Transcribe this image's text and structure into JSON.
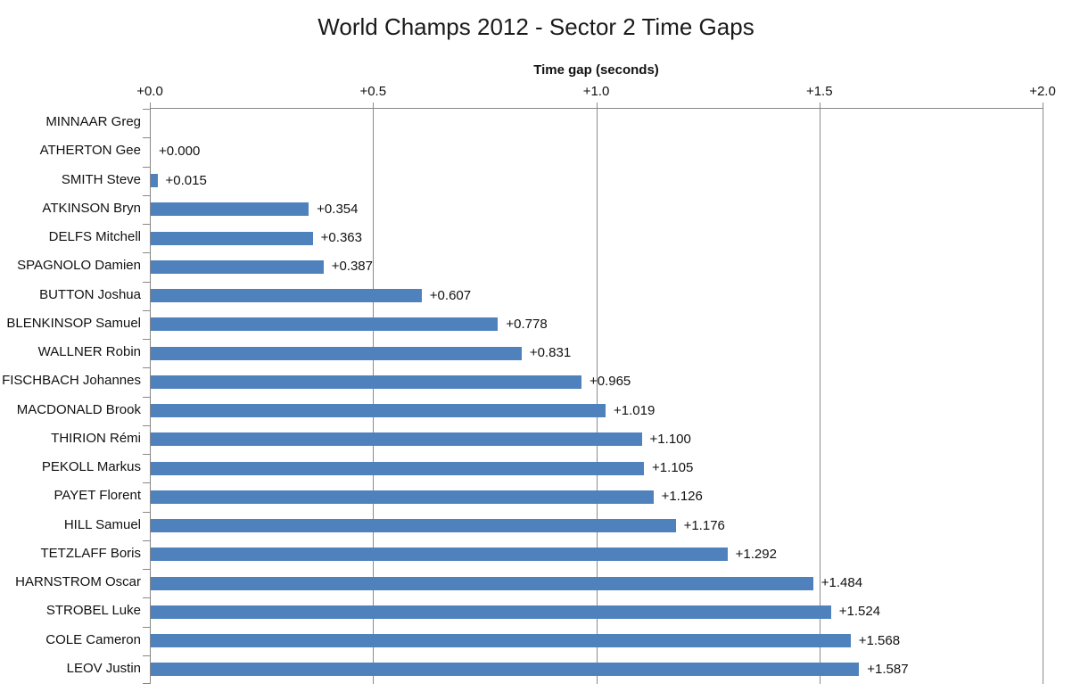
{
  "title": "World Champs 2012 - Sector 2 Time Gaps",
  "axis": {
    "title": "Time gap (seconds)",
    "ticks": [
      "+0.0",
      "+0.5",
      "+1.0",
      "+1.5",
      "+2.0"
    ]
  },
  "colors": {
    "bar": "#4f81bd",
    "gridline": "#8a8a8a",
    "text": "#111111"
  },
  "chart_data": {
    "type": "bar",
    "orientation": "horizontal",
    "title": "World Champs 2012 - Sector 2 Time Gaps",
    "xlabel": "Time gap (seconds)",
    "xlim": [
      0,
      2
    ],
    "grid": true,
    "categories": [
      "MINNAAR Greg",
      "ATHERTON Gee",
      "SMITH Steve",
      "ATKINSON Bryn",
      "DELFS Mitchell",
      "SPAGNOLO Damien",
      "BUTTON Joshua",
      "BLENKINSOP Samuel",
      "WALLNER Robin",
      "FISCHBACH Johannes",
      "MACDONALD Brook",
      "THIRION Rémi",
      "PEKOLL Markus",
      "PAYET Florent",
      "HILL Samuel",
      "TETZLAFF Boris",
      "HARNSTROM Oscar",
      "STROBEL Luke",
      "COLE Cameron",
      "LEOV Justin"
    ],
    "values": [
      null,
      0.0,
      0.015,
      0.354,
      0.363,
      0.387,
      0.607,
      0.778,
      0.831,
      0.965,
      1.019,
      1.1,
      1.105,
      1.126,
      1.176,
      1.292,
      1.484,
      1.524,
      1.568,
      1.587
    ],
    "value_labels": [
      "",
      "+0.000",
      "+0.015",
      "+0.354",
      "+0.363",
      "+0.387",
      "+0.607",
      "+0.778",
      "+0.831",
      "+0.965",
      "+1.019",
      "+1.100",
      "+1.105",
      "+1.126",
      "+1.176",
      "+1.292",
      "+1.484",
      "+1.524",
      "+1.568",
      "+1.587"
    ]
  }
}
